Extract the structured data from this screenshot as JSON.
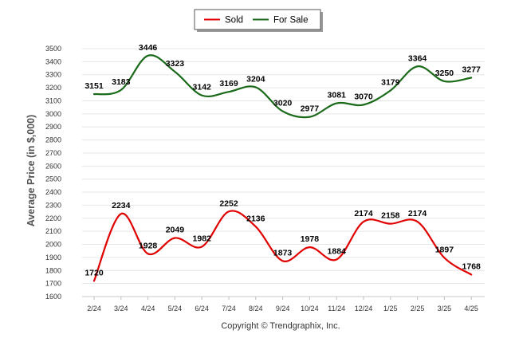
{
  "chart_data": {
    "type": "line",
    "title": "",
    "xlabel": "",
    "ylabel": "Average Price (in $,000)",
    "ylim": [
      1600,
      3500
    ],
    "ytick_step": 100,
    "grid": true,
    "legend_position": "top-center",
    "credit": "Copyright © Trendgraphix, Inc.",
    "categories": [
      "2/24",
      "3/24",
      "4/24",
      "5/24",
      "6/24",
      "7/24",
      "8/24",
      "9/24",
      "10/24",
      "11/24",
      "12/24",
      "1/25",
      "2/25",
      "3/25",
      "4/25"
    ],
    "series": [
      {
        "name": "Sold",
        "color": "#e00000",
        "values": [
          1720,
          2234,
          1928,
          2049,
          1982,
          2252,
          2136,
          1873,
          1978,
          1884,
          2174,
          2158,
          2174,
          1897,
          1768
        ]
      },
      {
        "name": "For Sale",
        "color": "#1a6a1a",
        "values": [
          3151,
          3183,
          3446,
          3323,
          3142,
          3169,
          3204,
          3020,
          2977,
          3081,
          3070,
          3179,
          3364,
          3250,
          3277
        ]
      }
    ]
  }
}
